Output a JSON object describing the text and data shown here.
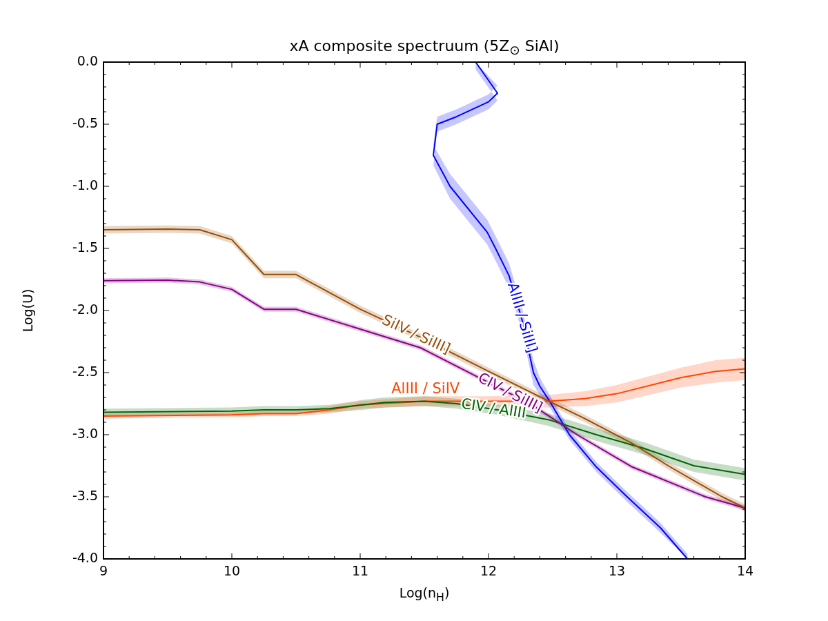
{
  "chart_data": {
    "type": "line",
    "title": "xA composite spectruum (5Z$_{⊙}$ SiAl)",
    "xlabel": "Log(n$_{H}$)",
    "ylabel": "Log(U)",
    "xlim": [
      9,
      14
    ],
    "ylim": [
      -4,
      0
    ],
    "xticks": [
      9,
      {
        "value": 9.2,
        "label": null
      },
      {
        "value": 9.4,
        "label": null
      },
      {
        "value": 9.6,
        "label": null
      },
      {
        "value": 9.8,
        "label": null
      },
      10,
      {
        "value": 10.2,
        "label": null
      },
      {
        "value": 10.4,
        "label": null
      },
      {
        "value": 10.6,
        "label": null
      },
      {
        "value": 10.8,
        "label": null
      },
      11,
      {
        "value": 11.2,
        "label": null
      },
      {
        "value": 11.4,
        "label": null
      },
      {
        "value": 11.6,
        "label": null
      },
      {
        "value": 11.8,
        "label": null
      },
      12,
      {
        "value": 12.2,
        "label": null
      },
      {
        "value": 12.4,
        "label": null
      },
      {
        "value": 12.6,
        "label": null
      },
      {
        "value": 12.8,
        "label": null
      },
      13,
      {
        "value": 13.2,
        "label": null
      },
      {
        "value": 13.4,
        "label": null
      },
      {
        "value": 13.6,
        "label": null
      },
      {
        "value": 13.8,
        "label": null
      },
      14
    ],
    "yticks": [
      {
        "value": -4,
        "label": "-4.0"
      },
      {
        "value": -3.9,
        "label": null
      },
      {
        "value": -3.8,
        "label": null
      },
      {
        "value": -3.7,
        "label": null
      },
      {
        "value": -3.6,
        "label": null
      },
      -3.5,
      {
        "value": -3.4,
        "label": null
      },
      {
        "value": -3.3,
        "label": null
      },
      {
        "value": -3.2,
        "label": null
      },
      {
        "value": -3.1,
        "label": null
      },
      {
        "value": -3,
        "label": "-3.0"
      },
      {
        "value": -2.9,
        "label": null
      },
      {
        "value": -2.8,
        "label": null
      },
      {
        "value": -2.7,
        "label": null
      },
      {
        "value": -2.6,
        "label": null
      },
      -2.5,
      {
        "value": -2.4,
        "label": null
      },
      {
        "value": -2.3,
        "label": null
      },
      {
        "value": -2.2,
        "label": null
      },
      {
        "value": -2.1,
        "label": null
      },
      {
        "value": -2,
        "label": "-2.0"
      },
      {
        "value": -1.9,
        "label": null
      },
      {
        "value": -1.8,
        "label": null
      },
      {
        "value": -1.7,
        "label": null
      },
      {
        "value": -1.6,
        "label": null
      },
      -1.5,
      {
        "value": -1.4,
        "label": null
      },
      {
        "value": -1.3,
        "label": null
      },
      {
        "value": -1.2,
        "label": null
      },
      {
        "value": -1.1,
        "label": null
      },
      {
        "value": -1,
        "label": "-1.0"
      },
      {
        "value": -0.9,
        "label": null
      },
      {
        "value": -0.8,
        "label": null
      },
      {
        "value": -0.7,
        "label": null
      },
      {
        "value": -0.6,
        "label": null
      },
      -0.5,
      {
        "value": -0.4,
        "label": null
      },
      {
        "value": -0.3,
        "label": null
      },
      {
        "value": -0.2,
        "label": null
      },
      {
        "value": -0.1,
        "label": null
      },
      {
        "value": 0,
        "label": "0.0"
      }
    ],
    "grid": false,
    "legend": false,
    "marker": "none",
    "line_style": "solid",
    "series": [
      {
        "name": "SiIV / SiIII]",
        "color": "#994c00",
        "x": [
          9,
          9.5,
          9.75,
          10,
          10.25,
          10.5,
          11,
          11.5,
          12,
          12.47,
          12.75,
          13.12,
          13.4,
          13.82,
          14
        ],
        "values": [
          -1.35,
          -1.345,
          -1.35,
          -1.43,
          -1.71,
          -1.71,
          -1.99,
          -2.23,
          -2.49,
          -2.73,
          -2.87,
          -3.07,
          -3.25,
          -3.5,
          -3.59
        ],
        "lower": [
          -1.38,
          -1.375,
          -1.38,
          -1.46,
          -1.74,
          -1.74,
          -2.02,
          -2.26,
          -2.52,
          -2.76,
          -2.9,
          -3.1,
          -3.28,
          -3.53,
          -3.62
        ],
        "upper": [
          -1.32,
          -1.315,
          -1.32,
          -1.4,
          -1.68,
          -1.68,
          -1.96,
          -2.2,
          -2.46,
          -2.7,
          -2.84,
          -3.04,
          -3.22,
          -3.47,
          -3.56
        ]
      },
      {
        "name": "CIV / SiIII]",
        "color": "#880088",
        "x": [
          9,
          9.5,
          9.75,
          10,
          10.25,
          10.5,
          11,
          11.47,
          12,
          12.34,
          12.69,
          13.12,
          13.69,
          14
        ],
        "values": [
          -1.76,
          -1.755,
          -1.77,
          -1.83,
          -1.99,
          -1.99,
          -2.15,
          -2.3,
          -2.58,
          -2.76,
          -3.0,
          -3.26,
          -3.5,
          -3.59
        ],
        "lower": [
          -1.78,
          -1.775,
          -1.79,
          -1.85,
          -2.01,
          -2.01,
          -2.17,
          -2.32,
          -2.6,
          -2.78,
          -3.02,
          -3.28,
          -3.52,
          -3.61
        ],
        "upper": [
          -1.74,
          -1.735,
          -1.75,
          -1.81,
          -1.97,
          -1.97,
          -2.13,
          -2.28,
          -2.56,
          -2.74,
          -2.98,
          -3.24,
          -3.48,
          -3.57
        ]
      },
      {
        "name": "CIV / AlIII",
        "color": "#006600",
        "x": [
          9,
          10,
          10.25,
          10.5,
          10.76,
          11.02,
          11.19,
          11.5,
          11.75,
          12.07,
          12.47,
          12.84,
          13.21,
          13.6,
          14
        ],
        "values": [
          -2.82,
          -2.81,
          -2.8,
          -2.8,
          -2.79,
          -2.76,
          -2.74,
          -2.73,
          -2.75,
          -2.8,
          -2.88,
          -3.0,
          -3.11,
          -3.25,
          -3.32
        ],
        "lower": [
          -2.85,
          -2.84,
          -2.83,
          -2.83,
          -2.82,
          -2.8,
          -2.78,
          -2.77,
          -2.79,
          -2.84,
          -2.93,
          -3.05,
          -3.16,
          -3.3,
          -3.37
        ],
        "upper": [
          -2.79,
          -2.78,
          -2.77,
          -2.77,
          -2.76,
          -2.72,
          -2.7,
          -2.69,
          -2.71,
          -2.76,
          -2.83,
          -2.95,
          -3.06,
          -3.2,
          -3.27
        ]
      },
      {
        "name": "AlIII / SiIV",
        "color": "#ff4500",
        "x": [
          9,
          10,
          10.25,
          10.5,
          10.76,
          11,
          11.5,
          11.99,
          12.47,
          12.75,
          13,
          13.5,
          13.77,
          14
        ],
        "values": [
          -2.85,
          -2.84,
          -2.83,
          -2.83,
          -2.8,
          -2.76,
          -2.73,
          -2.73,
          -2.73,
          -2.71,
          -2.67,
          -2.54,
          -2.49,
          -2.47
        ],
        "lower": [
          -2.87,
          -2.86,
          -2.85,
          -2.85,
          -2.83,
          -2.79,
          -2.77,
          -2.77,
          -2.78,
          -2.77,
          -2.74,
          -2.62,
          -2.58,
          -2.56
        ],
        "upper": [
          -2.83,
          -2.82,
          -2.81,
          -2.81,
          -2.77,
          -2.73,
          -2.69,
          -2.69,
          -2.68,
          -2.65,
          -2.6,
          -2.46,
          -2.4,
          -2.38
        ]
      },
      {
        "name": "AlIII / SiIII]",
        "color": "#0000ff",
        "x": [
          11.9,
          12.07,
          12.0,
          11.75,
          11.6,
          11.57,
          11.7,
          11.99,
          12.05,
          12.16,
          12.26,
          12.35,
          12.4,
          12.47,
          12.63,
          12.84,
          13.07,
          13.34,
          13.55
        ],
        "values": [
          0,
          -0.25,
          -0.32,
          -0.44,
          -0.5,
          -0.75,
          -1.0,
          -1.37,
          -1.49,
          -1.72,
          -2.07,
          -2.5,
          -2.61,
          -2.72,
          -3.0,
          -3.26,
          -3.49,
          -3.75,
          -4
        ],
        "lower": [
          -0.06,
          -0.31,
          -0.38,
          -0.5,
          -0.56,
          -0.83,
          -1.1,
          -1.47,
          -1.59,
          -1.82,
          -2.17,
          -2.6,
          -2.68,
          -2.77,
          -3.04,
          -3.3,
          -3.53,
          -3.79,
          -4
        ],
        "upper": [
          0,
          -0.19,
          -0.26,
          -0.38,
          -0.44,
          -0.67,
          -0.9,
          -1.27,
          -1.39,
          -1.62,
          -1.97,
          -2.4,
          -2.54,
          -2.67,
          -2.96,
          -3.22,
          -3.45,
          -3.71,
          -3.96
        ]
      }
    ]
  }
}
